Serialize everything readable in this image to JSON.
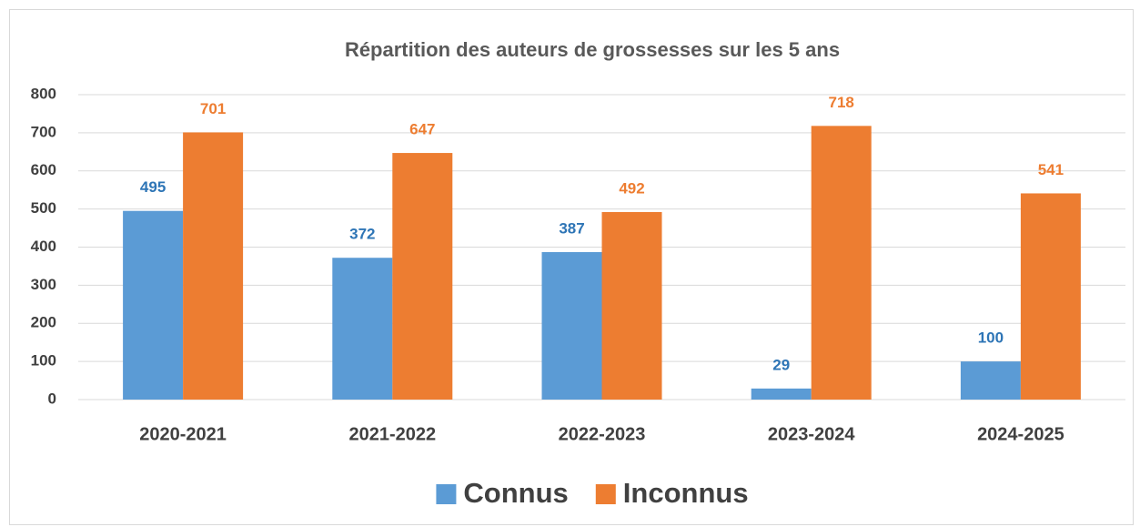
{
  "chart_data": {
    "type": "bar",
    "title": "Répartition des auteurs de grossesses sur les 5 ans",
    "categories": [
      "2020-2021",
      "2021-2022",
      "2022-2023",
      "2023-2024",
      "2024-2025"
    ],
    "series": [
      {
        "name": "Connus",
        "color": "#5b9bd5",
        "label_color": "#2e75b6",
        "values": [
          495,
          372,
          387,
          29,
          100
        ]
      },
      {
        "name": "Inconnus",
        "color": "#ed7d31",
        "label_color": "#ed7d31",
        "values": [
          701,
          647,
          492,
          718,
          541
        ]
      }
    ],
    "ylim": [
      0,
      800
    ],
    "yticks": [
      0,
      100,
      200,
      300,
      400,
      500,
      600,
      700,
      800
    ],
    "grid": true,
    "legend": "bottom"
  }
}
